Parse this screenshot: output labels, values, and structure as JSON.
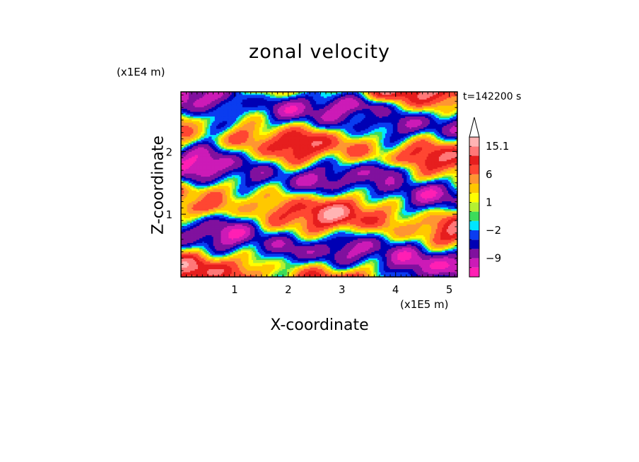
{
  "chart_data": {
    "type": "heatmap",
    "title": "zonal velocity",
    "xlabel": "X-coordinate",
    "ylabel": "Z-coordinate",
    "x_unit_label": "(x1E5 m)",
    "y_unit_label": "(x1E4 m)",
    "time_label": "t=142200 s",
    "xlim": [
      0,
      5.15
    ],
    "ylim": [
      0,
      2.95
    ],
    "x_ticks": [
      1,
      2,
      3,
      4,
      5
    ],
    "y_ticks": [
      1,
      2
    ],
    "colorbar": {
      "levels": [
        -15,
        -12,
        -9,
        -6,
        -4,
        -2,
        -1,
        0,
        1,
        2,
        4,
        6,
        9,
        12,
        15.1
      ],
      "colors": [
        "#ff1fb4",
        "#cc1bb7",
        "#80119e",
        "#0000b4",
        "#0a3cf0",
        "#00e6ff",
        "#3cdc5a",
        "#b4f032",
        "#ffff00",
        "#ffc800",
        "#ff9632",
        "#ff4632",
        "#e61e1e",
        "#ff7878",
        "#ffb4b4"
      ],
      "tick_labels": [
        {
          "value": 15.1,
          "text": "15.1"
        },
        {
          "value": 6,
          "text": "6"
        },
        {
          "value": 1,
          "text": "1"
        },
        {
          "value": -2,
          "text": "−2"
        },
        {
          "value": -9,
          "text": "−9"
        }
      ],
      "extend": "max"
    },
    "grid": false
  }
}
